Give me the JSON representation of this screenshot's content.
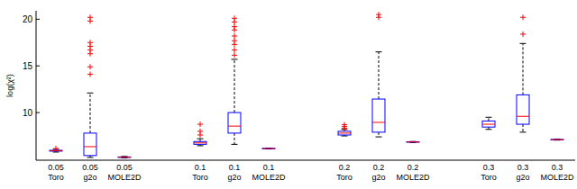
{
  "chart_data": {
    "type": "box",
    "y_label": "log(χ²)",
    "categories": [
      "0.05 Toro",
      "0.05 g2o",
      "0.05 MOLE2D",
      "0.1 Toro",
      "0.1 g2o",
      "0.1 MOLE2D",
      "0.2 Toro",
      "0.2 g2o",
      "0.2 MOLE2D",
      "0.3 Toro",
      "0.3 g2o",
      "0.3 MOLE2D"
    ],
    "boxes": [
      {
        "low": 5.77,
        "q1": 5.87,
        "median": 5.92,
        "q3": 5.96,
        "high": 6.06,
        "outliers": [
          6.15
        ]
      },
      {
        "low": 5.2,
        "q1": 5.4,
        "median": 6.35,
        "q3": 7.8,
        "high": 12.1,
        "outliers": [
          20.2,
          19.8,
          17.5,
          17.1,
          16.7,
          16.3,
          14.9,
          14.1
        ]
      },
      {
        "low": 5.15,
        "q1": 5.2,
        "median": 5.22,
        "q3": 5.25,
        "high": 5.3,
        "outliers": []
      },
      {
        "low": 6.45,
        "q1": 6.6,
        "median": 6.75,
        "q3": 6.9,
        "high": 7.2,
        "outliers": [
          7.6,
          8.0,
          8.75
        ]
      },
      {
        "low": 6.6,
        "q1": 7.8,
        "median": 8.55,
        "q3": 10.0,
        "high": 15.7,
        "outliers": [
          20.1,
          19.7,
          19.2,
          18.85,
          18.2,
          17.7,
          17.3,
          16.7,
          16.15
        ]
      },
      {
        "low": 6.1,
        "q1": 6.13,
        "median": 6.15,
        "q3": 6.17,
        "high": 6.2,
        "outliers": []
      },
      {
        "low": 7.5,
        "q1": 7.6,
        "median": 7.8,
        "q3": 8.0,
        "high": 8.2,
        "outliers": [
          8.3,
          8.5,
          8.7
        ]
      },
      {
        "low": 7.4,
        "q1": 7.9,
        "median": 8.95,
        "q3": 11.45,
        "high": 16.5,
        "outliers": [
          20.5,
          20.2
        ]
      },
      {
        "low": 6.8,
        "q1": 6.83,
        "median": 6.85,
        "q3": 6.88,
        "high": 6.9,
        "outliers": []
      },
      {
        "low": 8.2,
        "q1": 8.45,
        "median": 8.75,
        "q3": 9.1,
        "high": 9.5,
        "outliers": []
      },
      {
        "low": 7.9,
        "q1": 8.75,
        "median": 9.6,
        "q3": 11.9,
        "high": 17.4,
        "outliers": [
          20.2,
          18.4
        ]
      },
      {
        "low": 7.05,
        "q1": 7.08,
        "median": 7.1,
        "q3": 7.12,
        "high": 7.15,
        "outliers": []
      }
    ],
    "ylim": [
      4.9,
      20.9
    ],
    "yticks": [
      10,
      15,
      20
    ],
    "color": "#0000ff",
    "median_color": "#ff0000",
    "outlier_color": "#ff0000",
    "marker": "plus",
    "line_style": "dashed"
  }
}
